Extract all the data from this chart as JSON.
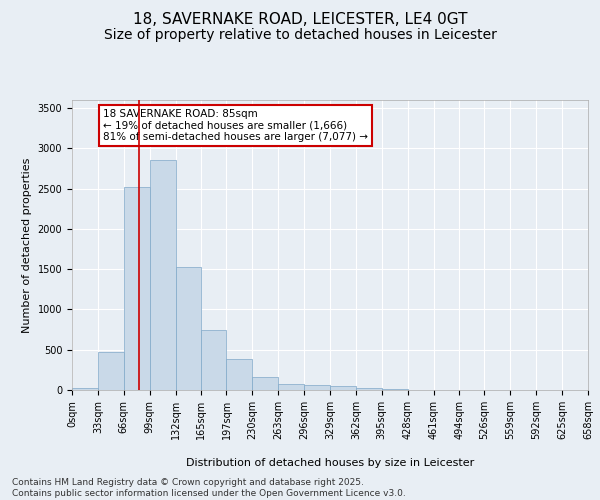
{
  "title": "18, SAVERNAKE ROAD, LEICESTER, LE4 0GT",
  "subtitle": "Size of property relative to detached houses in Leicester",
  "xlabel": "Distribution of detached houses by size in Leicester",
  "ylabel": "Number of detached properties",
  "bin_edges": [
    0,
    33,
    66,
    99,
    132,
    165,
    197,
    230,
    263,
    296,
    329,
    362,
    395,
    428,
    461,
    494,
    526,
    559,
    592,
    625,
    658
  ],
  "bar_heights": [
    20,
    470,
    2520,
    2850,
    1530,
    740,
    390,
    160,
    80,
    60,
    50,
    30,
    15,
    5,
    5,
    5,
    2,
    2,
    2,
    1
  ],
  "bar_color": "#c9d9e8",
  "bar_edgecolor": "#7fa8c8",
  "bar_linewidth": 0.5,
  "vline_x": 85,
  "vline_color": "#cc0000",
  "vline_linewidth": 1.2,
  "annotation_text": "18 SAVERNAKE ROAD: 85sqm\n← 19% of detached houses are smaller (1,666)\n81% of semi-detached houses are larger (7,077) →",
  "annotation_box_color": "#ffffff",
  "annotation_edge_color": "#cc0000",
  "ylim": [
    0,
    3600
  ],
  "yticks": [
    0,
    500,
    1000,
    1500,
    2000,
    2500,
    3000,
    3500
  ],
  "background_color": "#e8eef4",
  "grid_color": "#ffffff",
  "title_fontsize": 11,
  "subtitle_fontsize": 10,
  "axis_label_fontsize": 8,
  "tick_fontsize": 7,
  "annotation_fontsize": 7.5,
  "footer_text": "Contains HM Land Registry data © Crown copyright and database right 2025.\nContains public sector information licensed under the Open Government Licence v3.0.",
  "footer_fontsize": 6.5
}
